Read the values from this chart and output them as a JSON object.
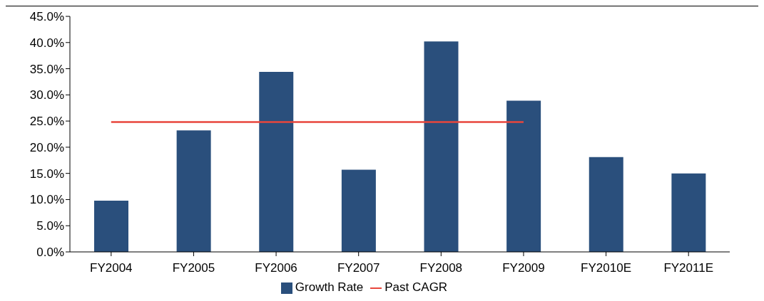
{
  "chart_data": {
    "type": "bar",
    "categories": [
      "FY2004",
      "FY2005",
      "FY2006",
      "FY2007",
      "FY2008",
      "FY2009",
      "FY2010E",
      "FY2011E"
    ],
    "series": [
      {
        "name": "Growth Rate",
        "color": "#2a4f7c",
        "values": [
          9.8,
          23.2,
          34.4,
          15.7,
          40.2,
          28.9,
          18.1,
          15.0
        ]
      },
      {
        "name": "Past CAGR",
        "type": "line",
        "color": "#e8463c",
        "values": [
          24.8,
          24.8,
          24.8,
          24.8,
          24.8,
          24.8,
          null,
          null
        ]
      }
    ],
    "ylim": [
      0,
      45
    ],
    "yticks": [
      {
        "value": 0,
        "label": "0.0%"
      },
      {
        "value": 5,
        "label": "5.0%"
      },
      {
        "value": 10,
        "label": "10.0%"
      },
      {
        "value": 15,
        "label": "15.0%"
      },
      {
        "value": 20,
        "label": "20.0%"
      },
      {
        "value": 25,
        "label": "25.0%"
      },
      {
        "value": 30,
        "label": "30.0%"
      },
      {
        "value": 35,
        "label": "35.0%"
      },
      {
        "value": 40,
        "label": "40.0%"
      },
      {
        "value": 45,
        "label": "45.0%"
      }
    ],
    "grid": false,
    "legend": "bottom",
    "marker": "none"
  }
}
